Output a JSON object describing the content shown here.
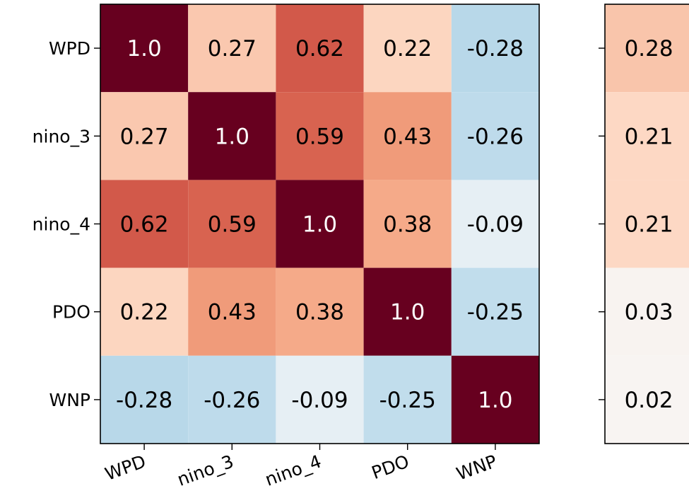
{
  "chart_data": [
    {
      "type": "heatmap",
      "title": "",
      "xlabel": "",
      "ylabel": "",
      "row_labels": [
        "WPD",
        "nino_3",
        "nino_4",
        "PDO",
        "WNP"
      ],
      "col_labels": [
        "WPD",
        "nino_3",
        "nino_4",
        "PDO",
        "WNP"
      ],
      "values": [
        [
          1.0,
          0.27,
          0.62,
          0.22,
          -0.28
        ],
        [
          0.27,
          1.0,
          0.59,
          0.43,
          -0.26
        ],
        [
          0.62,
          0.59,
          1.0,
          0.38,
          -0.09
        ],
        [
          0.22,
          0.43,
          0.38,
          1.0,
          -0.25
        ],
        [
          -0.28,
          -0.26,
          -0.09,
          -0.25,
          1.0
        ]
      ],
      "value_labels": [
        [
          "1.0",
          "0.27",
          "0.62",
          "0.22",
          "-0.28"
        ],
        [
          "0.27",
          "1.0",
          "0.59",
          "0.43",
          "-0.26"
        ],
        [
          "0.62",
          "0.59",
          "1.0",
          "0.38",
          "-0.09"
        ],
        [
          "0.22",
          "0.43",
          "0.38",
          "1.0",
          "-0.25"
        ],
        [
          "-0.28",
          "-0.26",
          "-0.09",
          "-0.25",
          "1.0"
        ]
      ],
      "colormap": "RdBu_r",
      "vlim": [
        -1,
        1
      ],
      "grid": false
    },
    {
      "type": "heatmap",
      "title": "",
      "row_labels": [
        "",
        "",
        "",
        "",
        ""
      ],
      "col_labels": [],
      "values": [
        [
          0.28
        ],
        [
          0.21
        ],
        [
          0.21
        ],
        [
          0.03
        ],
        [
          0.02
        ]
      ],
      "value_labels": [
        [
          "0.28"
        ],
        [
          "0.21"
        ],
        [
          "0.21"
        ],
        [
          "0.03"
        ],
        [
          "0.02"
        ]
      ],
      "colormap": "RdBu_r",
      "vlim": [
        -1,
        1
      ],
      "grid": false,
      "cropped_at_right_edge": true
    }
  ]
}
